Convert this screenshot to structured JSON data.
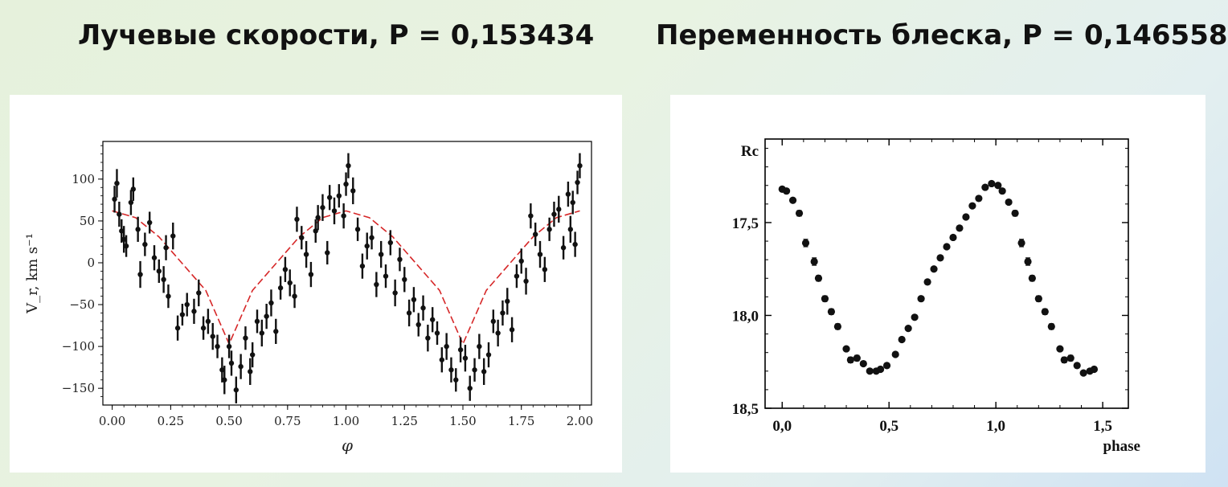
{
  "titles": {
    "left": "Лучевые скорости, P = 0,153434",
    "right": "Переменность блеска, P = 0,146558"
  },
  "colors": {
    "fit_line": "#d62728",
    "points": "#111111"
  },
  "chart_data": [
    {
      "type": "scatter",
      "xlabel": "φ",
      "ylabel": "V_r, km s⁻¹",
      "xlim": [
        -0.04,
        2.05
      ],
      "ylim": [
        -170,
        145
      ],
      "xticks": [
        0.0,
        0.25,
        0.5,
        0.75,
        1.0,
        1.25,
        1.5,
        1.75,
        2.0
      ],
      "xtick_labels": [
        "0.00",
        "0.25",
        "0.50",
        "0.75",
        "1.00",
        "1.25",
        "1.50",
        "1.75",
        "2.00"
      ],
      "yticks": [
        100,
        50,
        0,
        -50,
        -100,
        -150
      ],
      "ytick_labels": [
        "100",
        "50",
        "0",
        "−50",
        "−100",
        "−150"
      ],
      "fit": {
        "name": "",
        "style": "dashed",
        "color": "#d62728",
        "x": [
          0.0,
          0.1,
          0.2,
          0.3,
          0.4,
          0.5,
          0.6,
          0.7,
          0.8,
          0.9,
          1.0,
          1.1,
          1.2,
          1.3,
          1.4,
          1.5,
          1.6,
          1.7,
          1.8,
          1.9,
          2.0
        ],
        "y": [
          62,
          54,
          31,
          -1,
          -33,
          -97,
          -33,
          -1,
          31,
          54,
          62,
          54,
          31,
          -1,
          -33,
          -97,
          -33,
          -1,
          31,
          54,
          62
        ]
      },
      "points": [
        [
          0.01,
          76,
          16
        ],
        [
          0.02,
          95,
          17
        ],
        [
          0.03,
          58,
          15
        ],
        [
          0.04,
          38,
          14
        ],
        [
          0.05,
          28,
          16
        ],
        [
          0.06,
          20,
          13
        ],
        [
          0.08,
          72,
          15
        ],
        [
          0.09,
          88,
          14
        ],
        [
          0.11,
          40,
          15
        ],
        [
          0.12,
          -14,
          16
        ],
        [
          0.14,
          22,
          14
        ],
        [
          0.16,
          48,
          13
        ],
        [
          0.18,
          6,
          15
        ],
        [
          0.2,
          -10,
          14
        ],
        [
          0.22,
          -20,
          16
        ],
        [
          0.23,
          18,
          15
        ],
        [
          0.24,
          -40,
          14
        ],
        [
          0.26,
          32,
          16
        ],
        [
          0.28,
          -78,
          15
        ],
        [
          0.3,
          -62,
          13
        ],
        [
          0.32,
          -50,
          14
        ],
        [
          0.35,
          -58,
          15
        ],
        [
          0.37,
          -36,
          16
        ],
        [
          0.39,
          -78,
          14
        ],
        [
          0.41,
          -70,
          15
        ],
        [
          0.43,
          -88,
          16
        ],
        [
          0.45,
          -100,
          14
        ],
        [
          0.47,
          -128,
          15
        ],
        [
          0.48,
          -140,
          17
        ],
        [
          0.5,
          -100,
          14
        ],
        [
          0.51,
          -120,
          15
        ],
        [
          0.53,
          -152,
          16
        ],
        [
          0.55,
          -124,
          15
        ],
        [
          0.57,
          -90,
          14
        ],
        [
          0.59,
          -130,
          16
        ],
        [
          0.6,
          -110,
          15
        ],
        [
          0.62,
          -70,
          14
        ],
        [
          0.64,
          -84,
          16
        ],
        [
          0.66,
          -64,
          15
        ],
        [
          0.68,
          -48,
          16
        ],
        [
          0.7,
          -82,
          15
        ],
        [
          0.72,
          -30,
          14
        ],
        [
          0.74,
          -8,
          15
        ],
        [
          0.76,
          -24,
          16
        ],
        [
          0.78,
          -40,
          14
        ],
        [
          0.79,
          52,
          15
        ],
        [
          0.81,
          30,
          14
        ],
        [
          0.83,
          10,
          16
        ],
        [
          0.85,
          -14,
          15
        ],
        [
          0.87,
          38,
          14
        ],
        [
          0.88,
          54,
          15
        ],
        [
          0.9,
          66,
          16
        ],
        [
          0.92,
          12,
          14
        ],
        [
          0.93,
          78,
          15
        ],
        [
          0.95,
          62,
          16
        ],
        [
          0.97,
          80,
          14
        ],
        [
          0.99,
          56,
          15
        ],
        [
          1.0,
          94,
          14
        ],
        [
          1.01,
          116,
          15
        ],
        [
          1.03,
          86,
          16
        ],
        [
          1.05,
          40,
          14
        ],
        [
          1.07,
          -4,
          15
        ],
        [
          1.09,
          20,
          16
        ],
        [
          1.11,
          30,
          14
        ],
        [
          1.13,
          -26,
          15
        ],
        [
          1.15,
          10,
          16
        ],
        [
          1.17,
          -16,
          14
        ],
        [
          1.19,
          24,
          15
        ],
        [
          1.21,
          -36,
          16
        ],
        [
          1.23,
          4,
          14
        ],
        [
          1.25,
          -20,
          15
        ],
        [
          1.27,
          -60,
          16
        ],
        [
          1.29,
          -44,
          15
        ],
        [
          1.31,
          -74,
          14
        ],
        [
          1.33,
          -54,
          15
        ],
        [
          1.35,
          -90,
          16
        ],
        [
          1.37,
          -68,
          15
        ],
        [
          1.39,
          -84,
          14
        ],
        [
          1.41,
          -116,
          15
        ],
        [
          1.43,
          -100,
          16
        ],
        [
          1.45,
          -128,
          15
        ],
        [
          1.47,
          -140,
          14
        ],
        [
          1.49,
          -104,
          15
        ],
        [
          1.51,
          -114,
          16
        ],
        [
          1.53,
          -150,
          15
        ],
        [
          1.55,
          -128,
          14
        ],
        [
          1.57,
          -100,
          15
        ],
        [
          1.59,
          -130,
          16
        ],
        [
          1.61,
          -110,
          15
        ],
        [
          1.63,
          -70,
          14
        ],
        [
          1.65,
          -84,
          16
        ],
        [
          1.67,
          -60,
          15
        ],
        [
          1.69,
          -46,
          16
        ],
        [
          1.71,
          -80,
          15
        ],
        [
          1.73,
          -16,
          14
        ],
        [
          1.75,
          2,
          15
        ],
        [
          1.77,
          -22,
          16
        ],
        [
          1.79,
          56,
          15
        ],
        [
          1.81,
          34,
          14
        ],
        [
          1.83,
          10,
          16
        ],
        [
          1.85,
          -8,
          15
        ],
        [
          1.87,
          40,
          14
        ],
        [
          1.89,
          58,
          15
        ],
        [
          1.91,
          64,
          16
        ],
        [
          1.93,
          18,
          14
        ],
        [
          1.95,
          82,
          15
        ],
        [
          1.96,
          40,
          16
        ],
        [
          1.97,
          72,
          14
        ],
        [
          1.98,
          22,
          15
        ],
        [
          1.99,
          96,
          14
        ],
        [
          2.0,
          116,
          15
        ]
      ]
    },
    {
      "type": "scatter",
      "ylabel": "Rc",
      "xlabel": "phase",
      "xlim": [
        -0.08,
        1.62
      ],
      "ylim": [
        17.05,
        18.5
      ],
      "y_inverted": true,
      "xticks": [
        0.0,
        0.5,
        1.0,
        1.5
      ],
      "xtick_labels": [
        "0,0",
        "0,5",
        "1,0",
        "1,5"
      ],
      "yticks": [
        17.5,
        18.0,
        18.5
      ],
      "ytick_labels": [
        "17,5",
        "18,0",
        "18,5"
      ],
      "points": [
        [
          0.0,
          17.32,
          0.01
        ],
        [
          0.02,
          17.33,
          0.01
        ],
        [
          0.05,
          17.38,
          0.01
        ],
        [
          0.08,
          17.45,
          0.015
        ],
        [
          0.11,
          17.61,
          0.02
        ],
        [
          0.15,
          17.71,
          0.02
        ],
        [
          0.17,
          17.8,
          0.015
        ],
        [
          0.2,
          17.91,
          0.015
        ],
        [
          0.23,
          17.98,
          0.015
        ],
        [
          0.26,
          18.06,
          0.015
        ],
        [
          0.3,
          18.18,
          0.01
        ],
        [
          0.32,
          18.24,
          0.015
        ],
        [
          0.35,
          18.23,
          0.015
        ],
        [
          0.38,
          18.26,
          0.01
        ],
        [
          0.41,
          18.3,
          0.01
        ],
        [
          0.44,
          18.3,
          0.01
        ],
        [
          0.46,
          18.29,
          0.01
        ],
        [
          0.49,
          18.27,
          0.01
        ],
        [
          0.53,
          18.21,
          0.01
        ],
        [
          0.56,
          18.13,
          0.01
        ],
        [
          0.59,
          18.07,
          0.01
        ],
        [
          0.62,
          18.01,
          0.01
        ],
        [
          0.65,
          17.91,
          0.01
        ],
        [
          0.68,
          17.82,
          0.01
        ],
        [
          0.71,
          17.75,
          0.01
        ],
        [
          0.74,
          17.69,
          0.01
        ],
        [
          0.77,
          17.63,
          0.01
        ],
        [
          0.8,
          17.58,
          0.01
        ],
        [
          0.83,
          17.53,
          0.01
        ],
        [
          0.86,
          17.47,
          0.01
        ],
        [
          0.89,
          17.41,
          0.01
        ],
        [
          0.92,
          17.37,
          0.01
        ],
        [
          0.95,
          17.31,
          0.01
        ],
        [
          0.98,
          17.29,
          0.01
        ],
        [
          1.01,
          17.3,
          0.01
        ],
        [
          1.03,
          17.33,
          0.01
        ],
        [
          1.06,
          17.39,
          0.01
        ],
        [
          1.09,
          17.45,
          0.015
        ],
        [
          1.12,
          17.61,
          0.02
        ],
        [
          1.15,
          17.71,
          0.02
        ],
        [
          1.17,
          17.8,
          0.015
        ],
        [
          1.2,
          17.91,
          0.015
        ],
        [
          1.23,
          17.98,
          0.015
        ],
        [
          1.26,
          18.06,
          0.015
        ],
        [
          1.3,
          18.18,
          0.01
        ],
        [
          1.32,
          18.24,
          0.015
        ],
        [
          1.35,
          18.23,
          0.015
        ],
        [
          1.38,
          18.27,
          0.01
        ],
        [
          1.41,
          18.31,
          0.01
        ],
        [
          1.44,
          18.3,
          0.01
        ],
        [
          1.46,
          18.29,
          0.01
        ]
      ]
    }
  ]
}
